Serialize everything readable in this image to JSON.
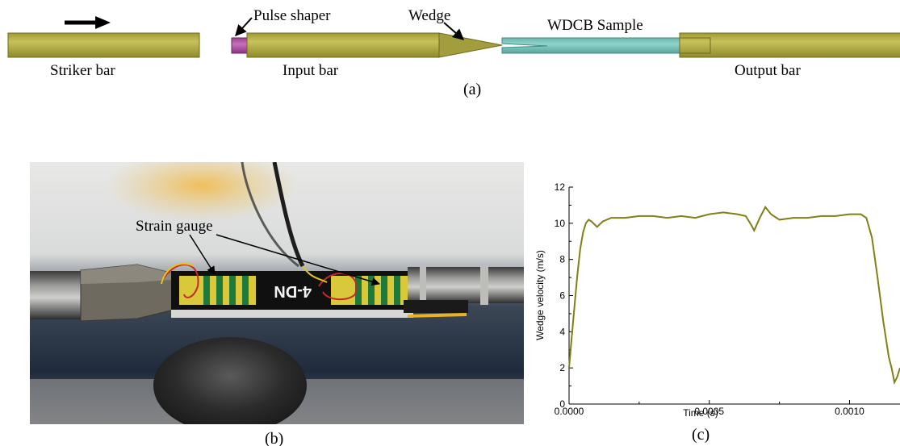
{
  "panel_a": {
    "labels": {
      "pulse_shaper": "Pulse shaper",
      "wedge": "Wedge",
      "sample": "WDCB Sample",
      "striker": "Striker bar",
      "input": "Input bar",
      "output": "Output bar"
    },
    "caption": "(a)",
    "colors": {
      "bar": "#b3ad45",
      "bar_edge": "#6f6a1c",
      "shaper": "#b25aa6",
      "sample": "#7cc6bd",
      "sample_edge": "#3f8f86",
      "arrow": "#000000"
    }
  },
  "panel_b": {
    "label": "Strain gauge",
    "caption": "(b)",
    "specimen_text": "4-DN"
  },
  "panel_c": {
    "caption": "(c)",
    "chart_data": {
      "type": "line",
      "xlabel": "Time (s)",
      "ylabel": "Wedge velocity (m/s)",
      "xlim": [
        0.0,
        0.00118
      ],
      "ylim": [
        0,
        12
      ],
      "xticks": [
        0.0,
        0.0005,
        0.001
      ],
      "xtick_labels": [
        "0.0000",
        "0.0005",
        "0.0010"
      ],
      "yticks": [
        0,
        2,
        4,
        6,
        8,
        10,
        12
      ],
      "ytick_labels": [
        "0",
        "2",
        "4",
        "6",
        "8",
        "10",
        "12"
      ],
      "line_color": "#808014",
      "x": [
        0.0,
        1e-05,
        2e-05,
        3e-05,
        4e-05,
        5e-05,
        6e-05,
        7e-05,
        8e-05,
        0.0001,
        0.00012,
        0.00015,
        0.0002,
        0.00025,
        0.0003,
        0.00035,
        0.0004,
        0.00045,
        0.0005,
        0.00055,
        0.0006,
        0.00063,
        0.00065,
        0.00066,
        0.00068,
        0.0007,
        0.00072,
        0.00075,
        0.0008,
        0.00085,
        0.0009,
        0.00095,
        0.001,
        0.00104,
        0.00106,
        0.00108,
        0.0011,
        0.00112,
        0.00114,
        0.00115,
        0.00116,
        0.00117,
        0.00118
      ],
      "y": [
        2.0,
        3.8,
        5.5,
        7.2,
        8.6,
        9.5,
        10.0,
        10.2,
        10.1,
        9.8,
        10.1,
        10.3,
        10.3,
        10.4,
        10.4,
        10.3,
        10.4,
        10.3,
        10.5,
        10.6,
        10.5,
        10.4,
        9.9,
        9.6,
        10.3,
        10.9,
        10.5,
        10.2,
        10.3,
        10.3,
        10.4,
        10.4,
        10.5,
        10.5,
        10.3,
        9.2,
        7.0,
        4.6,
        2.6,
        2.0,
        1.2,
        1.5,
        2.0
      ]
    }
  }
}
